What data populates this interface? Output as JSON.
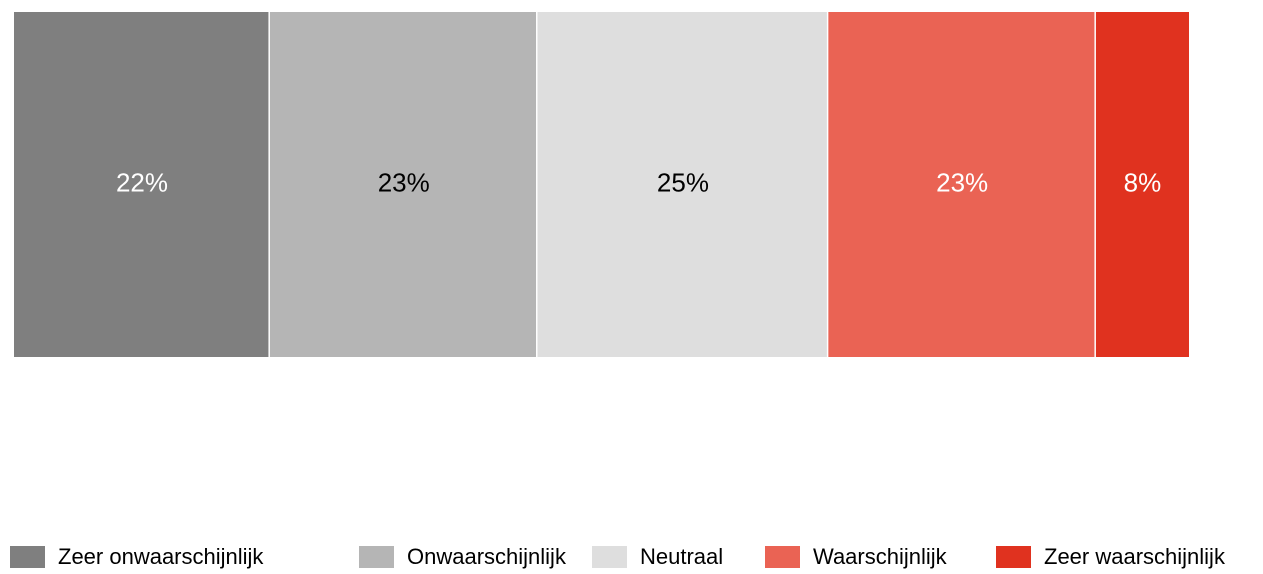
{
  "chart_data": {
    "type": "stacked_bar_100",
    "categories": [
      null
    ],
    "series": [
      {
        "name": "Zeer onwaarschijnlijk",
        "color": "#7f7f7f",
        "label_color": "#ffffff",
        "values": [
          22
        ],
        "value_labels": [
          "22%"
        ]
      },
      {
        "name": "Onwaarschijnlijk",
        "color": "#b5b5b5",
        "label_color": "#000000",
        "values": [
          23
        ],
        "value_labels": [
          "23%"
        ]
      },
      {
        "name": "Neutraal",
        "color": "#dedede",
        "label_color": "#000000",
        "values": [
          25
        ],
        "value_labels": [
          "25%"
        ]
      },
      {
        "name": "Waarschijnlijk",
        "color": "#ea6354",
        "label_color": "#ffffff",
        "values": [
          23
        ],
        "value_labels": [
          "23%"
        ]
      },
      {
        "name": "Zeer waarschijnlijk",
        "color": "#e0321f",
        "label_color": "#ffffff",
        "values": [
          8
        ],
        "value_labels": [
          "8%"
        ]
      }
    ],
    "legend": "bottom"
  }
}
